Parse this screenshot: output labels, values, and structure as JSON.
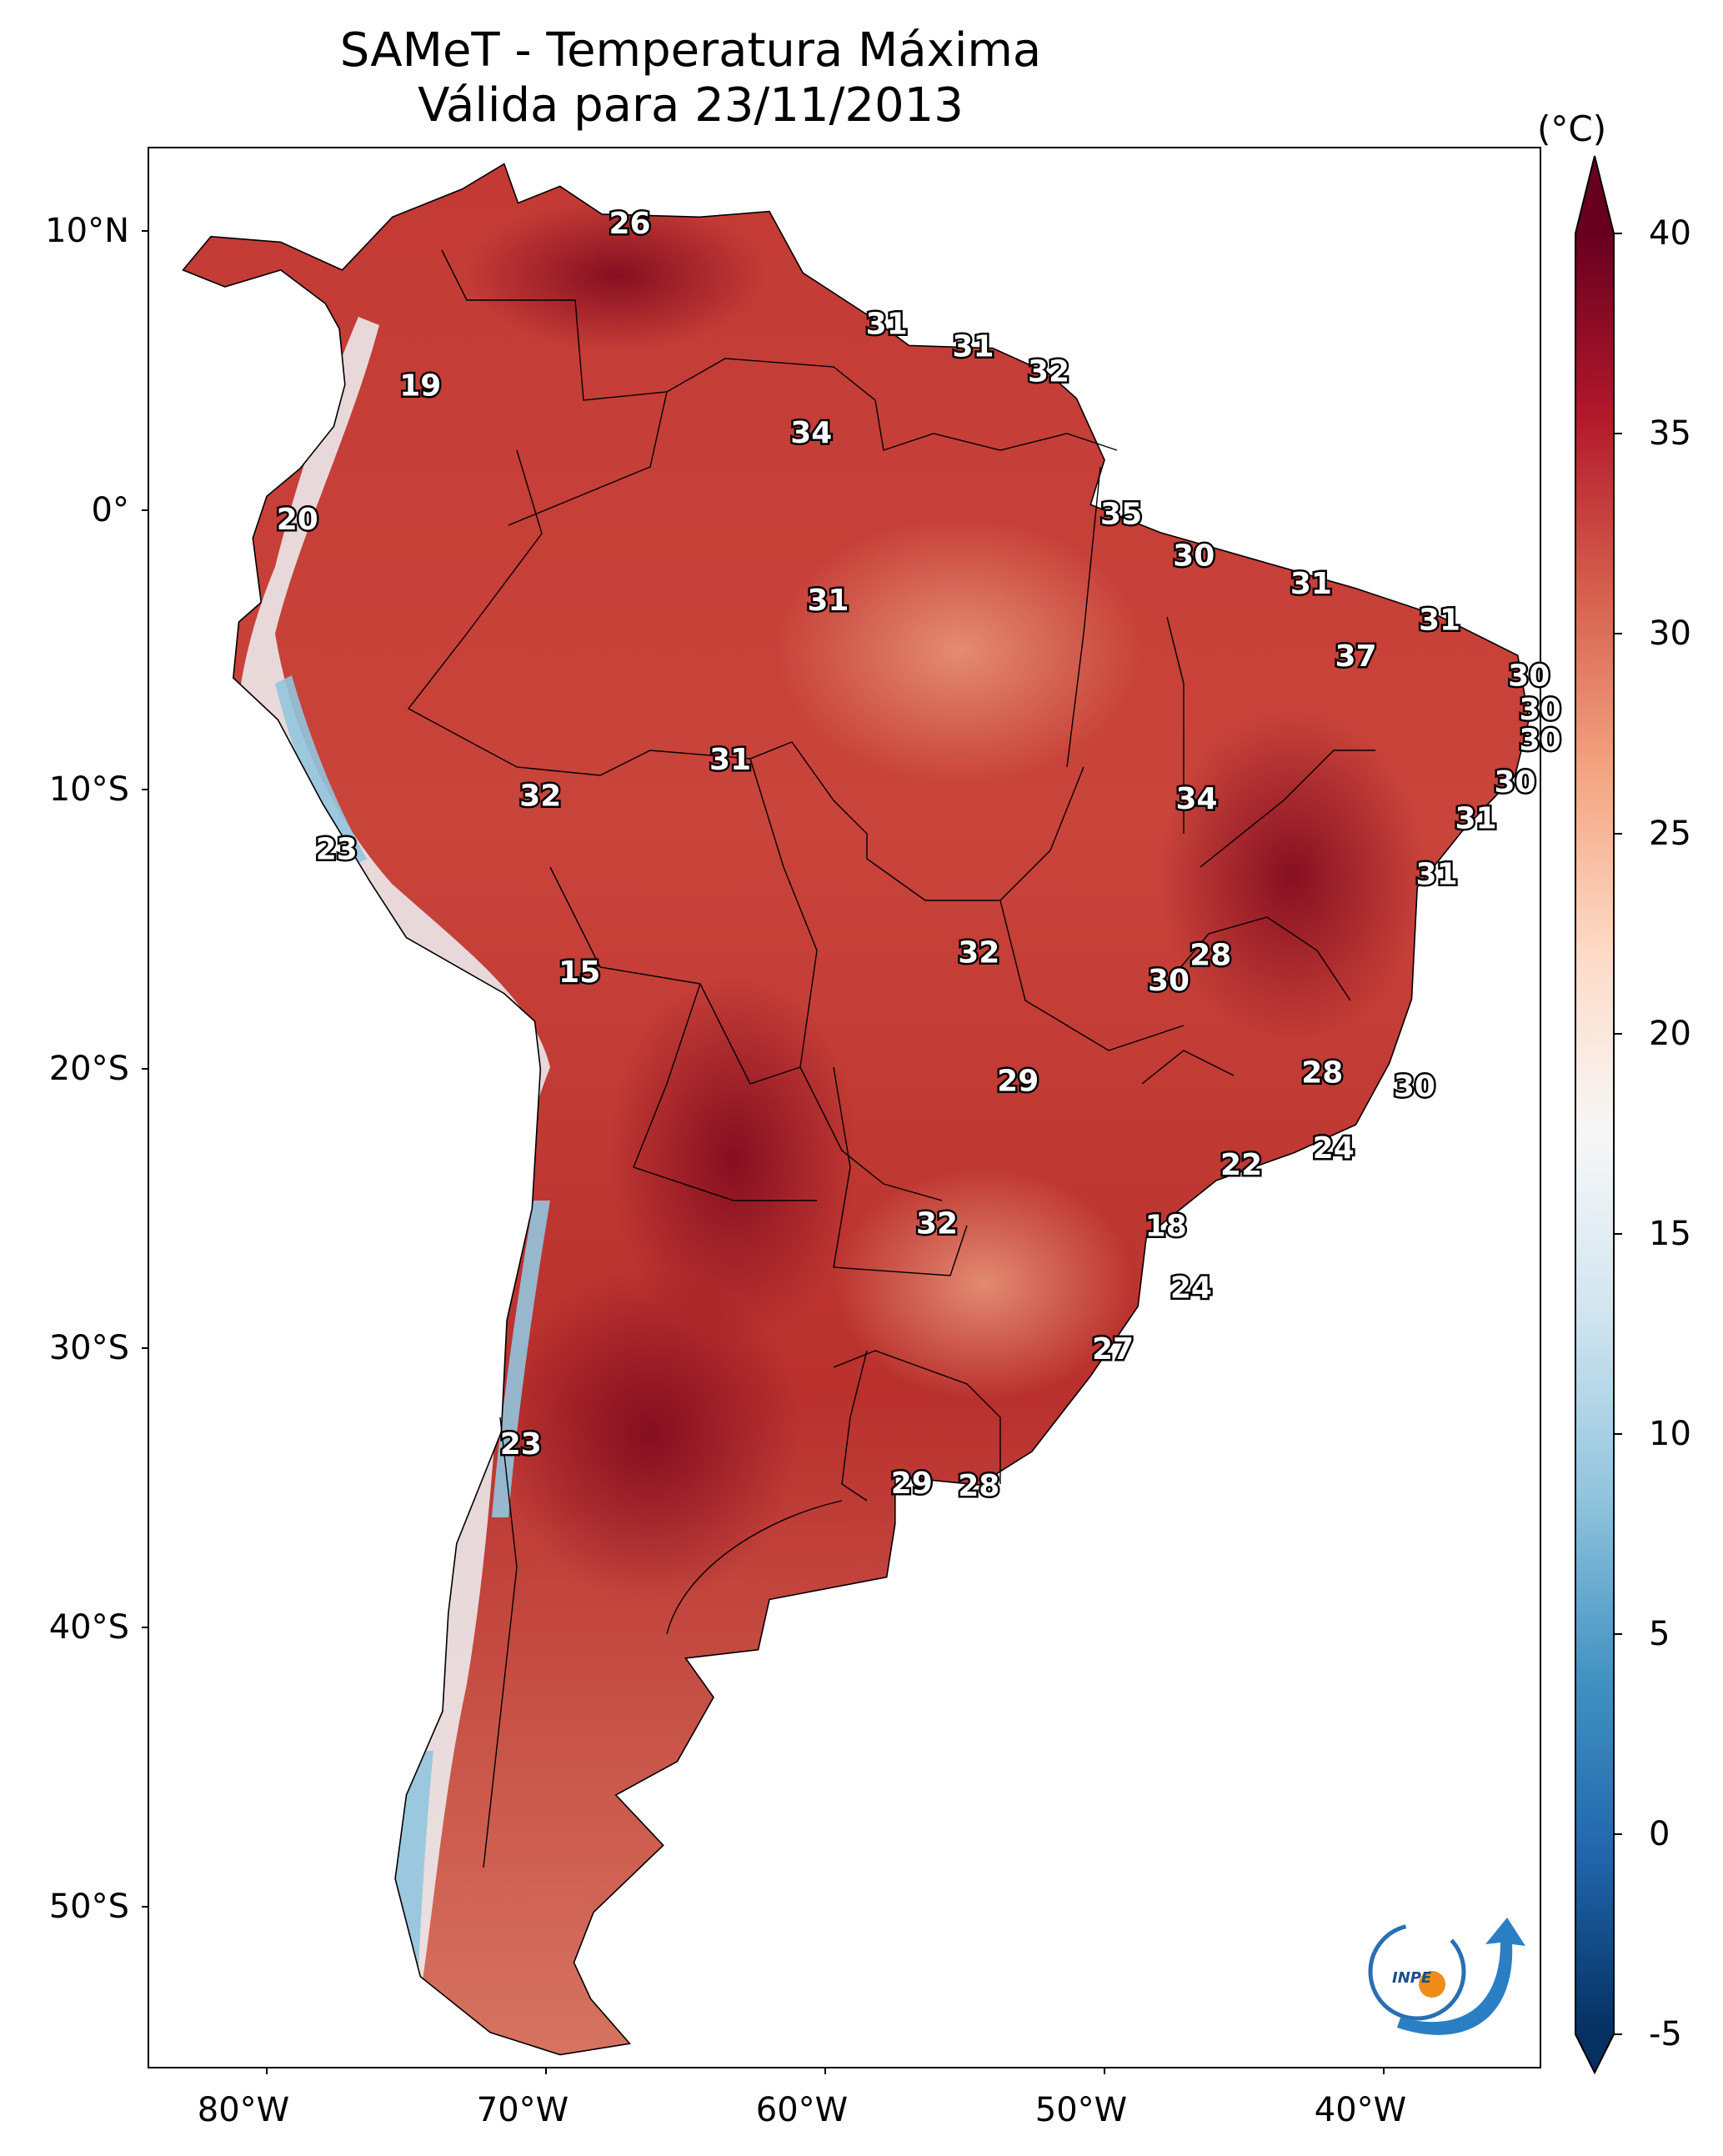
{
  "title": {
    "line1": "SAMeT - Temperatura Máxima",
    "line2": "Válida para 23/11/2013"
  },
  "axes": {
    "lat_ticks": [
      "10°N",
      "0°",
      "10°S",
      "20°S",
      "30°S",
      "40°S",
      "50°S"
    ],
    "lon_ticks": [
      "80°W",
      "70°W",
      "60°W",
      "50°W",
      "40°W"
    ]
  },
  "colorbar": {
    "unit": "(°C)",
    "ticks": [
      "40",
      "35",
      "30",
      "25",
      "20",
      "15",
      "10",
      "5",
      "0",
      "-5"
    ],
    "range": [
      -5,
      40
    ],
    "colors": [
      "#053061",
      "#2166ac",
      "#4393c3",
      "#92c5de",
      "#d1e5f0",
      "#f7f7f7",
      "#fddbc7",
      "#f4a582",
      "#d6604d",
      "#b2182b",
      "#67001f"
    ]
  },
  "labels": [
    {
      "v": "26",
      "lon": -67.0,
      "lat": 10.3
    },
    {
      "v": "31",
      "lon": -57.8,
      "lat": 6.7
    },
    {
      "v": "31",
      "lon": -54.7,
      "lat": 5.9
    },
    {
      "v": "32",
      "lon": -52.0,
      "lat": 5.0
    },
    {
      "v": "19",
      "lon": -74.5,
      "lat": 4.5
    },
    {
      "v": "34",
      "lon": -60.5,
      "lat": 2.8
    },
    {
      "v": "35",
      "lon": -49.4,
      "lat": -0.1
    },
    {
      "v": "20",
      "lon": -78.9,
      "lat": -0.3
    },
    {
      "v": "30",
      "lon": -46.8,
      "lat": -1.6
    },
    {
      "v": "31",
      "lon": -42.6,
      "lat": -2.6
    },
    {
      "v": "31",
      "lon": -59.9,
      "lat": -3.2
    },
    {
      "v": "31",
      "lon": -38.0,
      "lat": -3.9
    },
    {
      "v": "37",
      "lon": -41.0,
      "lat": -5.2
    },
    {
      "v": "30",
      "lon": -34.8,
      "lat": -5.9
    },
    {
      "v": "30",
      "lon": -34.4,
      "lat": -7.1
    },
    {
      "v": "30",
      "lon": -34.4,
      "lat": -8.2
    },
    {
      "v": "31",
      "lon": -63.4,
      "lat": -8.9
    },
    {
      "v": "30",
      "lon": -35.3,
      "lat": -9.7
    },
    {
      "v": "32",
      "lon": -70.2,
      "lat": -10.2
    },
    {
      "v": "34",
      "lon": -46.7,
      "lat": -10.3
    },
    {
      "v": "31",
      "lon": -36.7,
      "lat": -11.0
    },
    {
      "v": "23",
      "lon": -77.5,
      "lat": -12.1
    },
    {
      "v": "31",
      "lon": -38.1,
      "lat": -13.0
    },
    {
      "v": "28",
      "lon": -46.2,
      "lat": -15.9
    },
    {
      "v": "32",
      "lon": -54.5,
      "lat": -15.8
    },
    {
      "v": "15",
      "lon": -68.8,
      "lat": -16.5
    },
    {
      "v": "30",
      "lon": -47.7,
      "lat": -16.8
    },
    {
      "v": "28",
      "lon": -42.2,
      "lat": -20.1
    },
    {
      "v": "29",
      "lon": -53.1,
      "lat": -20.4
    },
    {
      "v": "30",
      "lon": -38.9,
      "lat": -20.6
    },
    {
      "v": "24",
      "lon": -41.8,
      "lat": -22.8
    },
    {
      "v": "22",
      "lon": -45.1,
      "lat": -23.4
    },
    {
      "v": "32",
      "lon": -56.0,
      "lat": -25.5
    },
    {
      "v": "18",
      "lon": -47.8,
      "lat": -25.6
    },
    {
      "v": "24",
      "lon": -46.9,
      "lat": -27.8
    },
    {
      "v": "27",
      "lon": -49.7,
      "lat": -30.0
    },
    {
      "v": "23",
      "lon": -70.9,
      "lat": -33.4
    },
    {
      "v": "29",
      "lon": -56.9,
      "lat": -34.8
    },
    {
      "v": "28",
      "lon": -54.5,
      "lat": -34.9
    }
  ]
}
